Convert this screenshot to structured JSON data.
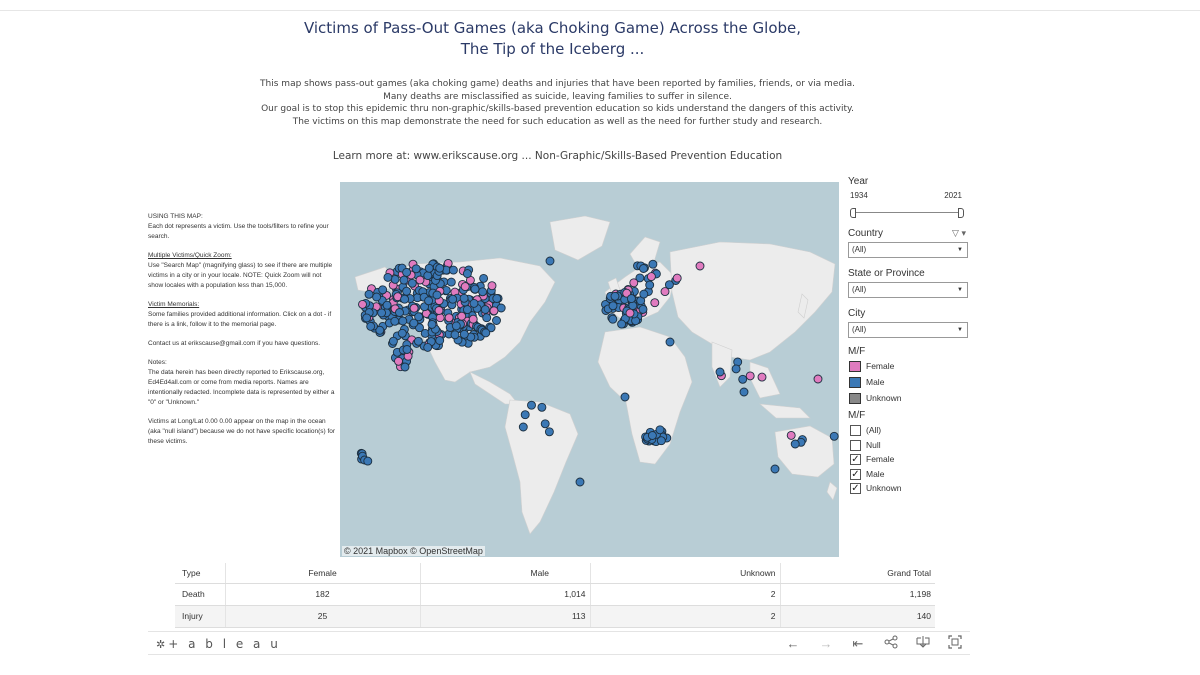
{
  "header": {
    "title_line1": "Victims of Pass-Out Games (aka Choking Game) Across the Globe,",
    "title_line2": "The Tip of the Iceberg ...",
    "desc_lines": [
      "This map shows pass-out games (aka choking game) deaths and injuries that have been reported by families, friends, or via media.",
      "Many deaths are misclassified as suicide, leaving families to suffer in silence.",
      "Our goal is to stop this epidemic thru non-graphic/skills-based prevention education so kids understand the dangers of this activity.",
      "The victims on this map demonstrate the need for such education as well as the need for further study and research."
    ],
    "learn_more": "Learn more at:  www.erikscause.org ... Non-Graphic/Skills-Based Prevention Education"
  },
  "left_panel": {
    "using_title": "USING THIS MAP:",
    "using_text": "Each dot represents a victim.  Use the tools/filters to refine your search.",
    "multi_title": "Multiple Victims/Quick Zoom:",
    "multi_text": "Use \"Search Map\" (magnifying glass) to see if there are multiple victims in a city or in your locale. NOTE:  Quick Zoom will not show locales with a population less than 15,000.",
    "memorial_title": "Victim Memorials:",
    "memorial_text": "Some families provided additional information.  Click on a dot - if there is a link, follow it to the memorial page.",
    "contact_text": "Contact us at erikscause@gmail.com if you have questions.",
    "notes_title": "Notes:",
    "notes_text": "The data herein has been directly reported to Erikscause.org, Ed4Ed4all.com or come from media reports.  Names are intentionally redacted.  Incomplete data is represented by either a \"0\" or \"Unknown.\"",
    "null_text": "Victims at Long/Lat 0.00 0.00 appear on the map in the ocean (aka \"null island\") because we do not have specific location(s) for these victims."
  },
  "map": {
    "credit": "© 2021 Mapbox  © OpenStreetMap",
    "colors": {
      "ocean": "#b8cdd5",
      "land": "#ececec",
      "female": "#e07bbf",
      "male": "#3b78b5",
      "unknown": "#888888",
      "outline": "#1c2f3f"
    },
    "icons": [
      "search-icon",
      "zoom-icon"
    ]
  },
  "filters": {
    "year_label": "Year",
    "year_min": "1934",
    "year_max": "2021",
    "country_label": "Country",
    "country_value": "(All)",
    "state_label": "State or Province",
    "state_value": "(All)",
    "city_label": "City",
    "city_value": "(All)",
    "legend_title": "M/F",
    "legend": [
      {
        "label": "Female",
        "color": "#e07bbf"
      },
      {
        "label": "Male",
        "color": "#3b78b5"
      },
      {
        "label": "Unknown",
        "color": "#888888"
      }
    ],
    "mf_filter_title": "M/F",
    "mf_options": [
      {
        "label": "(All)",
        "checked": false
      },
      {
        "label": "Null",
        "checked": false
      },
      {
        "label": "Female",
        "checked": true
      },
      {
        "label": "Male",
        "checked": true
      },
      {
        "label": "Unknown",
        "checked": true
      }
    ]
  },
  "summary_table": {
    "headers": [
      "Type",
      "Female",
      "Male",
      "Unknown",
      "Grand Total"
    ],
    "rows": [
      [
        "Death",
        "182",
        "1,014",
        "2",
        "1,198"
      ],
      [
        "Injury",
        "25",
        "113",
        "2",
        "140"
      ]
    ]
  },
  "footer": {
    "logo_mark": "✲",
    "logo_text": "+ a b l e a u",
    "toolbar_icons": [
      "undo-icon",
      "redo-icon",
      "revert-icon",
      "share-icon",
      "download-icon",
      "fullscreen-icon"
    ]
  }
}
